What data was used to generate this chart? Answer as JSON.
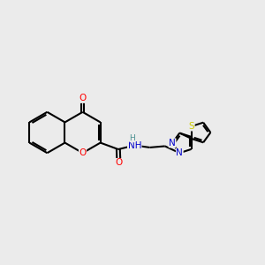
{
  "bg_color": "#ebebeb",
  "bond_color": "#000000",
  "bond_width": 1.5,
  "atom_colors": {
    "O": "#ff0000",
    "N": "#0000cd",
    "S": "#cccc00",
    "C": "#000000",
    "H": "#4a9090"
  },
  "font_size": 7.5,
  "figsize": [
    3.0,
    3.0
  ],
  "dpi": 100
}
